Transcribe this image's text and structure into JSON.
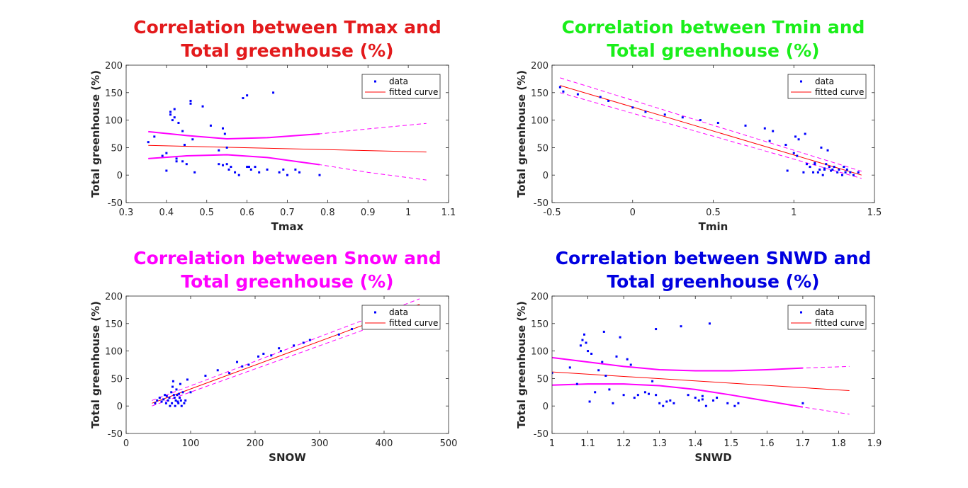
{
  "figure": {
    "background": "#ffffff"
  },
  "chart_data": [
    {
      "type": "scatter",
      "title": [
        "Correlation between Tmax and",
        "Total greenhouse (%)"
      ],
      "title_color": "#e31a1c",
      "xlabel": "Tmax",
      "ylabel": "Total greenhouse (%)",
      "xlim": [
        0.3,
        1.1
      ],
      "ylim": [
        -50,
        200
      ],
      "xticks": [
        0.3,
        0.4,
        0.5,
        0.6,
        0.7,
        0.8,
        0.9,
        1,
        1.1
      ],
      "xtick_labels": [
        "0.3",
        "0.4",
        "0.5",
        "0.6",
        "0.7",
        "0.8",
        "0.9",
        "1",
        "1.1"
      ],
      "yticks": [
        -50,
        0,
        50,
        100,
        150,
        200
      ],
      "ytick_labels": [
        "-50",
        "0",
        "50",
        "100",
        "150",
        "200"
      ],
      "legend": {
        "placement": "top-right",
        "entries": [
          "data",
          "fitted curve"
        ]
      },
      "colors": {
        "data": "#0000ff",
        "fit": "#ff0000",
        "bounds": "#ff00ff"
      },
      "data": {
        "x": [
          0.355,
          0.37,
          0.39,
          0.4,
          0.41,
          0.41,
          0.415,
          0.42,
          0.42,
          0.425,
          0.43,
          0.44,
          0.445,
          0.45,
          0.46,
          0.46,
          0.465,
          0.47,
          0.49,
          0.51,
          0.53,
          0.53,
          0.54,
          0.545,
          0.55,
          0.555,
          0.56,
          0.57,
          0.58,
          0.59,
          0.6,
          0.605,
          0.61,
          0.62,
          0.63,
          0.65,
          0.665,
          0.68,
          0.69,
          0.7,
          0.72,
          0.73,
          0.78,
          0.4,
          0.425,
          0.44,
          0.55,
          0.6,
          0.54
        ],
        "y": [
          60,
          70,
          35,
          40,
          110,
          115,
          100,
          105,
          120,
          25,
          95,
          80,
          55,
          20,
          130,
          135,
          65,
          5,
          125,
          90,
          45,
          20,
          85,
          75,
          20,
          10,
          15,
          5,
          0,
          140,
          145,
          15,
          10,
          15,
          5,
          10,
          150,
          5,
          10,
          0,
          10,
          5,
          0,
          8,
          30,
          25,
          50,
          15,
          18
        ]
      },
      "fit": {
        "x": [
          0.355,
          1.045
        ],
        "y": [
          54,
          42
        ]
      },
      "bounds_upper": {
        "x": [
          0.355,
          0.45,
          0.55,
          0.65,
          0.78,
          0.9,
          1.045
        ],
        "y": [
          79,
          72,
          66,
          68,
          75,
          84,
          94
        ]
      },
      "bounds_lower": {
        "x": [
          0.355,
          0.45,
          0.55,
          0.65,
          0.78,
          0.9,
          1.045
        ],
        "y": [
          30,
          35,
          37,
          32,
          19,
          5,
          -9
        ]
      }
    },
    {
      "type": "scatter",
      "title": [
        "Correlation between Tmin and",
        "Total greenhouse (%)"
      ],
      "title_color": "#1aee1a",
      "xlabel": "Tmin",
      "ylabel": "Total greenhouse (%)",
      "xlim": [
        -0.5,
        1.5
      ],
      "ylim": [
        -50,
        200
      ],
      "xticks": [
        -0.5,
        0,
        0.5,
        1,
        1.5
      ],
      "xtick_labels": [
        "-0.5",
        "0",
        "0.5",
        "1",
        "1.5"
      ],
      "yticks": [
        -50,
        0,
        50,
        100,
        150,
        200
      ],
      "ytick_labels": [
        "-50",
        "0",
        "50",
        "100",
        "150",
        "200"
      ],
      "legend": {
        "placement": "top-right",
        "entries": [
          "data",
          "fitted curve"
        ]
      },
      "colors": {
        "data": "#0000ff",
        "fit": "#ff0000",
        "bounds": "#ff00ff"
      },
      "data": {
        "x": [
          -0.45,
          -0.43,
          -0.34,
          -0.2,
          -0.15,
          0.0,
          0.08,
          0.2,
          0.31,
          0.42,
          0.53,
          0.7,
          0.82,
          0.85,
          0.87,
          0.95,
          0.96,
          1.0,
          1.01,
          1.02,
          1.03,
          1.06,
          1.07,
          1.08,
          1.1,
          1.12,
          1.13,
          1.15,
          1.16,
          1.17,
          1.18,
          1.19,
          1.2,
          1.21,
          1.22,
          1.24,
          1.25,
          1.27,
          1.28,
          1.3,
          1.31,
          1.32,
          1.33,
          1.35,
          1.37,
          1.4,
          1.13,
          1.19,
          1.23
        ],
        "y": [
          160,
          152,
          147,
          142,
          135,
          123,
          115,
          110,
          105,
          100,
          95,
          90,
          85,
          62,
          80,
          55,
          8,
          40,
          70,
          35,
          65,
          5,
          75,
          20,
          15,
          5,
          20,
          5,
          10,
          50,
          0,
          10,
          20,
          45,
          15,
          10,
          15,
          5,
          10,
          0,
          15,
          5,
          10,
          5,
          0,
          5,
          22,
          12,
          8
        ]
      },
      "fit": {
        "x": [
          -0.45,
          1.42
        ],
        "y": [
          163,
          0
        ]
      },
      "bounds_upper": {
        "x": [
          -0.45,
          1.42
        ],
        "y": [
          177,
          7
        ]
      },
      "bounds_lower": {
        "x": [
          -0.45,
          1.42
        ],
        "y": [
          150,
          -6
        ]
      }
    },
    {
      "type": "scatter",
      "title": [
        "Correlation between Snow and",
        "Total greenhouse (%)"
      ],
      "title_color": "#ff00ff",
      "xlabel": "SNOW",
      "ylabel": "Total greenhouse (%)",
      "xlim": [
        0,
        500
      ],
      "ylim": [
        -50,
        200
      ],
      "xticks": [
        0,
        100,
        200,
        300,
        400,
        500
      ],
      "xtick_labels": [
        "0",
        "100",
        "200",
        "300",
        "400",
        "500"
      ],
      "yticks": [
        -50,
        0,
        50,
        100,
        150,
        200
      ],
      "ytick_labels": [
        "-50",
        "0",
        "50",
        "100",
        "150",
        "200"
      ],
      "legend": {
        "placement": "top-right",
        "entries": [
          "data",
          "fitted curve"
        ]
      },
      "colors": {
        "data": "#0000ff",
        "fit": "#ff0000",
        "bounds": "#ff00ff"
      },
      "data": {
        "x": [
          45,
          48,
          52,
          55,
          58,
          60,
          62,
          63,
          65,
          67,
          68,
          70,
          71,
          72,
          73,
          74,
          75,
          76,
          77,
          78,
          79,
          80,
          81,
          82,
          83,
          84,
          85,
          86,
          88,
          90,
          92,
          95,
          100,
          123,
          142,
          160,
          172,
          180,
          190,
          205,
          213,
          225,
          237,
          240,
          260,
          275,
          285,
          330,
          350,
          420
        ],
        "y": [
          5,
          10,
          15,
          8,
          12,
          20,
          5,
          18,
          10,
          15,
          0,
          25,
          5,
          35,
          45,
          20,
          15,
          0,
          10,
          30,
          20,
          8,
          5,
          22,
          15,
          40,
          10,
          0,
          25,
          5,
          10,
          48,
          25,
          55,
          65,
          60,
          80,
          72,
          75,
          90,
          95,
          92,
          105,
          100,
          110,
          115,
          120,
          130,
          140,
          175
        ]
      },
      "fit": {
        "x": [
          40,
          455
        ],
        "y": [
          5,
          185
        ]
      },
      "bounds_upper": {
        "x": [
          40,
          455
        ],
        "y": [
          10,
          195
        ]
      },
      "bounds_lower": {
        "x": [
          40,
          455
        ],
        "y": [
          0,
          175
        ]
      }
    },
    {
      "type": "scatter",
      "title": [
        "Correlation between SNWD and",
        "Total greenhouse (%)"
      ],
      "title_color": "#0000e0",
      "xlabel": "SNWD",
      "ylabel": "Total greenhouse (%)",
      "xlim": [
        1,
        1.9
      ],
      "ylim": [
        -50,
        200
      ],
      "xticks": [
        1,
        1.1,
        1.2,
        1.3,
        1.4,
        1.5,
        1.6,
        1.7,
        1.8,
        1.9
      ],
      "xtick_labels": [
        "1",
        "1.1",
        "1.2",
        "1.3",
        "1.4",
        "1.5",
        "1.6",
        "1.7",
        "1.8",
        "1.9"
      ],
      "yticks": [
        -50,
        0,
        50,
        100,
        150,
        200
      ],
      "ytick_labels": [
        "-50",
        "0",
        "50",
        "100",
        "150",
        "200"
      ],
      "legend": {
        "placement": "top-right",
        "entries": [
          "data",
          "fitted curve"
        ]
      },
      "colors": {
        "data": "#0000ff",
        "fit": "#ff0000",
        "bounds": "#ff00ff"
      },
      "data": {
        "x": [
          1.0,
          1.05,
          1.07,
          1.08,
          1.085,
          1.09,
          1.095,
          1.1,
          1.105,
          1.11,
          1.12,
          1.13,
          1.14,
          1.145,
          1.15,
          1.16,
          1.17,
          1.18,
          1.19,
          1.2,
          1.21,
          1.22,
          1.24,
          1.26,
          1.28,
          1.29,
          1.3,
          1.31,
          1.32,
          1.33,
          1.34,
          1.36,
          1.38,
          1.4,
          1.41,
          1.42,
          1.43,
          1.44,
          1.45,
          1.46,
          1.49,
          1.51,
          1.52,
          1.7,
          1.29,
          1.23,
          1.27,
          1.42
        ],
        "y": [
          60,
          70,
          40,
          110,
          120,
          130,
          115,
          100,
          8,
          95,
          25,
          65,
          80,
          135,
          55,
          30,
          5,
          90,
          125,
          20,
          85,
          75,
          20,
          25,
          45,
          140,
          5,
          0,
          8,
          10,
          5,
          145,
          20,
          15,
          10,
          18,
          0,
          150,
          10,
          15,
          5,
          0,
          5,
          5,
          20,
          15,
          22,
          12
        ]
      },
      "fit": {
        "x": [
          1.0,
          1.83
        ],
        "y": [
          62,
          28
        ]
      },
      "bounds_upper": {
        "x": [
          1.0,
          1.1,
          1.2,
          1.3,
          1.4,
          1.5,
          1.6,
          1.7,
          1.83
        ],
        "y": [
          88,
          80,
          72,
          66,
          64,
          64,
          66,
          69,
          72
        ]
      },
      "bounds_lower": {
        "x": [
          1.0,
          1.1,
          1.2,
          1.3,
          1.4,
          1.5,
          1.6,
          1.7,
          1.83
        ],
        "y": [
          38,
          40,
          40,
          37,
          30,
          20,
          9,
          -2,
          -15
        ]
      }
    }
  ]
}
